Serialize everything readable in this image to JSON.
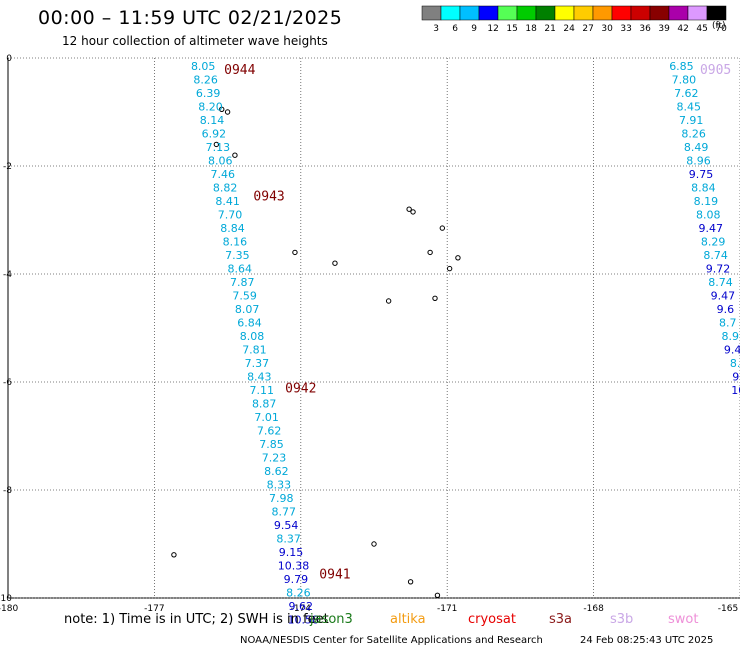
{
  "header": {
    "title": "00:00 – 11:59 UTC 02/21/2025",
    "subtitle": "12 hour collection of altimeter wave heights"
  },
  "colorbar": {
    "ticks": [
      "3",
      "6",
      "9",
      "12",
      "15",
      "18",
      "21",
      "24",
      "27",
      "30",
      "33",
      "36",
      "39",
      "42",
      "45",
      "70"
    ],
    "colors": [
      "#808080",
      "#00ffff",
      "#00bfff",
      "#0000ff",
      "#55ff55",
      "#00cc00",
      "#008000",
      "#ffff00",
      "#ffcc00",
      "#ff9900",
      "#ff0000",
      "#cc0000",
      "#880000",
      "#aa00aa",
      "#dd99ff",
      "#000000"
    ],
    "unit": "(ft)"
  },
  "axes": {
    "x_ticks": [
      "-180",
      "-177",
      "-174",
      "-171",
      "-168",
      "-165"
    ],
    "x_values": [
      -180,
      -177,
      -174,
      -171,
      -168,
      -165
    ],
    "y_ticks": [
      "0",
      "-2",
      "-4",
      "-6",
      "-8",
      "-10"
    ],
    "y_values": [
      0,
      -2,
      -4,
      -6,
      -8,
      -10
    ],
    "lon_range": [
      -180,
      -165
    ],
    "lat_range": [
      -10,
      0
    ]
  },
  "passes": [
    {
      "label": "0944",
      "label_color": "#800000",
      "lon": -175.25,
      "lat": -0.2
    },
    {
      "label": "0943",
      "label_color": "#800000",
      "lon": -174.65,
      "lat": -2.55
    },
    {
      "label": "0942",
      "label_color": "#800000",
      "lon": -174.0,
      "lat": -6.1
    },
    {
      "label": "0941",
      "label_color": "#800000",
      "lon": -173.3,
      "lat": -9.55
    },
    {
      "label": "0905",
      "label_color": "#c9a7e6",
      "lon": -165.5,
      "lat": -0.2
    }
  ],
  "tracks": [
    {
      "name": "0944-0941 track",
      "points": [
        {
          "lon": -176.0,
          "lat": -0.15,
          "swh": "8.05",
          "color": "#00a8d8"
        },
        {
          "lon": -175.95,
          "lat": -0.4,
          "swh": "8.26",
          "color": "#00a8d8"
        },
        {
          "lon": -175.9,
          "lat": -0.65,
          "swh": "6.39",
          "color": "#00a8d8"
        },
        {
          "lon": -175.85,
          "lat": -0.9,
          "swh": "8.20",
          "color": "#00a8d8"
        },
        {
          "lon": -175.82,
          "lat": -1.15,
          "swh": "8.14",
          "color": "#00a8d8"
        },
        {
          "lon": -175.78,
          "lat": -1.4,
          "swh": "6.92",
          "color": "#00a8d8"
        },
        {
          "lon": -175.7,
          "lat": -1.65,
          "swh": "7.13",
          "color": "#00a8d8"
        },
        {
          "lon": -175.65,
          "lat": -1.9,
          "swh": "8.06",
          "color": "#00a8d8"
        },
        {
          "lon": -175.6,
          "lat": -2.15,
          "swh": "7.46",
          "color": "#00a8d8"
        },
        {
          "lon": -175.55,
          "lat": -2.4,
          "swh": "8.82",
          "color": "#00a8d8"
        },
        {
          "lon": -175.5,
          "lat": -2.65,
          "swh": "8.41",
          "color": "#00a8d8"
        },
        {
          "lon": -175.45,
          "lat": -2.9,
          "swh": "7.70",
          "color": "#00a8d8"
        },
        {
          "lon": -175.4,
          "lat": -3.15,
          "swh": "8.84",
          "color": "#00a8d8"
        },
        {
          "lon": -175.35,
          "lat": -3.4,
          "swh": "8.16",
          "color": "#00a8d8"
        },
        {
          "lon": -175.3,
          "lat": -3.65,
          "swh": "7.35",
          "color": "#00a8d8"
        },
        {
          "lon": -175.25,
          "lat": -3.9,
          "swh": "8.64",
          "color": "#00a8d8"
        },
        {
          "lon": -175.2,
          "lat": -4.15,
          "swh": "7.87",
          "color": "#00a8d8"
        },
        {
          "lon": -175.15,
          "lat": -4.4,
          "swh": "7.59",
          "color": "#00a8d8"
        },
        {
          "lon": -175.1,
          "lat": -4.65,
          "swh": "8.07",
          "color": "#00a8d8"
        },
        {
          "lon": -175.05,
          "lat": -4.9,
          "swh": "6.84",
          "color": "#00a8d8"
        },
        {
          "lon": -175.0,
          "lat": -5.15,
          "swh": "8.08",
          "color": "#00a8d8"
        },
        {
          "lon": -174.95,
          "lat": -5.4,
          "swh": "7.81",
          "color": "#00a8d8"
        },
        {
          "lon": -174.9,
          "lat": -5.65,
          "swh": "7.37",
          "color": "#00a8d8"
        },
        {
          "lon": -174.85,
          "lat": -5.9,
          "swh": "8.43",
          "color": "#00a8d8"
        },
        {
          "lon": -174.8,
          "lat": -6.15,
          "swh": "7.11",
          "color": "#00a8d8"
        },
        {
          "lon": -174.75,
          "lat": -6.4,
          "swh": "8.87",
          "color": "#00a8d8"
        },
        {
          "lon": -174.7,
          "lat": -6.65,
          "swh": "7.01",
          "color": "#00a8d8"
        },
        {
          "lon": -174.65,
          "lat": -6.9,
          "swh": "7.62",
          "color": "#00a8d8"
        },
        {
          "lon": -174.6,
          "lat": -7.15,
          "swh": "7.85",
          "color": "#00a8d8"
        },
        {
          "lon": -174.55,
          "lat": -7.4,
          "swh": "7.23",
          "color": "#00a8d8"
        },
        {
          "lon": -174.5,
          "lat": -7.65,
          "swh": "8.62",
          "color": "#00a8d8"
        },
        {
          "lon": -174.45,
          "lat": -7.9,
          "swh": "8.33",
          "color": "#00a8d8"
        },
        {
          "lon": -174.4,
          "lat": -8.15,
          "swh": "7.98",
          "color": "#00a8d8"
        },
        {
          "lon": -174.35,
          "lat": -8.4,
          "swh": "8.77",
          "color": "#00a8d8"
        },
        {
          "lon": -174.3,
          "lat": -8.65,
          "swh": "9.54",
          "color": "#0000cc"
        },
        {
          "lon": -174.25,
          "lat": -8.9,
          "swh": "8.37",
          "color": "#00a8d8"
        },
        {
          "lon": -174.2,
          "lat": -9.15,
          "swh": "9.15",
          "color": "#0000cc"
        },
        {
          "lon": -174.15,
          "lat": -9.4,
          "swh": "10.38",
          "color": "#0000cc"
        },
        {
          "lon": -174.1,
          "lat": -9.65,
          "swh": "9.79",
          "color": "#0000cc"
        },
        {
          "lon": -174.05,
          "lat": -9.9,
          "swh": "8.26",
          "color": "#00a8d8"
        },
        {
          "lon": -174.0,
          "lat": -10.15,
          "swh": "9.62",
          "color": "#0000cc"
        },
        {
          "lon": -173.95,
          "lat": -10.4,
          "swh": "10.58",
          "color": "#0000cc"
        }
      ]
    },
    {
      "name": "0905 track",
      "points": [
        {
          "lon": -166.2,
          "lat": -0.15,
          "swh": "6.85",
          "color": "#00a8d8"
        },
        {
          "lon": -166.15,
          "lat": -0.4,
          "swh": "7.80",
          "color": "#00a8d8"
        },
        {
          "lon": -166.1,
          "lat": -0.65,
          "swh": "7.62",
          "color": "#00a8d8"
        },
        {
          "lon": -166.05,
          "lat": -0.9,
          "swh": "8.45",
          "color": "#00a8d8"
        },
        {
          "lon": -166.0,
          "lat": -1.15,
          "swh": "7.91",
          "color": "#00a8d8"
        },
        {
          "lon": -165.95,
          "lat": -1.4,
          "swh": "8.26",
          "color": "#00a8d8"
        },
        {
          "lon": -165.9,
          "lat": -1.65,
          "swh": "8.49",
          "color": "#00a8d8"
        },
        {
          "lon": -165.85,
          "lat": -1.9,
          "swh": "8.96",
          "color": "#00a8d8"
        },
        {
          "lon": -165.8,
          "lat": -2.15,
          "swh": "9.75",
          "color": "#0000cc"
        },
        {
          "lon": -165.75,
          "lat": -2.4,
          "swh": "8.84",
          "color": "#00a8d8"
        },
        {
          "lon": -165.7,
          "lat": -2.65,
          "swh": "8.19",
          "color": "#00a8d8"
        },
        {
          "lon": -165.65,
          "lat": -2.9,
          "swh": "8.08",
          "color": "#00a8d8"
        },
        {
          "lon": -165.6,
          "lat": -3.15,
          "swh": "9.47",
          "color": "#0000cc"
        },
        {
          "lon": -165.55,
          "lat": -3.4,
          "swh": "8.29",
          "color": "#00a8d8"
        },
        {
          "lon": -165.5,
          "lat": -3.65,
          "swh": "8.74",
          "color": "#00a8d8"
        },
        {
          "lon": -165.45,
          "lat": -3.9,
          "swh": "9.72",
          "color": "#0000cc"
        },
        {
          "lon": -165.4,
          "lat": -4.15,
          "swh": "8.74",
          "color": "#00a8d8"
        },
        {
          "lon": -165.35,
          "lat": -4.4,
          "swh": "9.47",
          "color": "#0000cc"
        },
        {
          "lon": -165.3,
          "lat": -4.65,
          "swh": "9.6",
          "color": "#0000cc"
        },
        {
          "lon": -165.25,
          "lat": -4.9,
          "swh": "8.7",
          "color": "#00a8d8"
        },
        {
          "lon": -165.2,
          "lat": -5.15,
          "swh": "8.9",
          "color": "#00a8d8"
        },
        {
          "lon": -165.15,
          "lat": -5.4,
          "swh": "9.4",
          "color": "#0000cc"
        },
        {
          "lon": -165.1,
          "lat": -5.65,
          "swh": "8.",
          "color": "#00a8d8"
        },
        {
          "lon": -165.05,
          "lat": -5.9,
          "swh": "9.",
          "color": "#0000cc"
        },
        {
          "lon": -165.0,
          "lat": -6.15,
          "swh": "10.",
          "color": "#0000cc"
        }
      ]
    }
  ],
  "islands": [
    {
      "lon": -175.62,
      "lat": -0.95
    },
    {
      "lon": -175.5,
      "lat": -1.0
    },
    {
      "lon": -175.73,
      "lat": -1.6
    },
    {
      "lon": -175.35,
      "lat": -1.8
    },
    {
      "lon": -174.12,
      "lat": -3.6
    },
    {
      "lon": -173.3,
      "lat": -3.8
    },
    {
      "lon": -171.78,
      "lat": -2.8
    },
    {
      "lon": -171.7,
      "lat": -2.85
    },
    {
      "lon": -171.1,
      "lat": -3.15
    },
    {
      "lon": -171.35,
      "lat": -3.6
    },
    {
      "lon": -170.78,
      "lat": -3.7
    },
    {
      "lon": -170.95,
      "lat": -3.9
    },
    {
      "lon": -172.2,
      "lat": -4.5
    },
    {
      "lon": -171.25,
      "lat": -4.45
    },
    {
      "lon": -172.5,
      "lat": -9.0
    },
    {
      "lon": -171.75,
      "lat": -9.7
    },
    {
      "lon": -171.2,
      "lat": -9.95
    },
    {
      "lon": -176.6,
      "lat": -9.2
    }
  ],
  "footer": {
    "note": "note: 1) Time is in UTC; 2) SWH is in feet",
    "legend": {
      "jason3": "jason3",
      "altika": "altika",
      "cryosat": "cryosat",
      "s3a": "s3a",
      "s3b": "s3b",
      "swot": "swot"
    },
    "credit": "NOAA/NESDIS Center for Satellite Applications and Research",
    "timestamp": "24 Feb 08:25:43 UTC 2025"
  }
}
